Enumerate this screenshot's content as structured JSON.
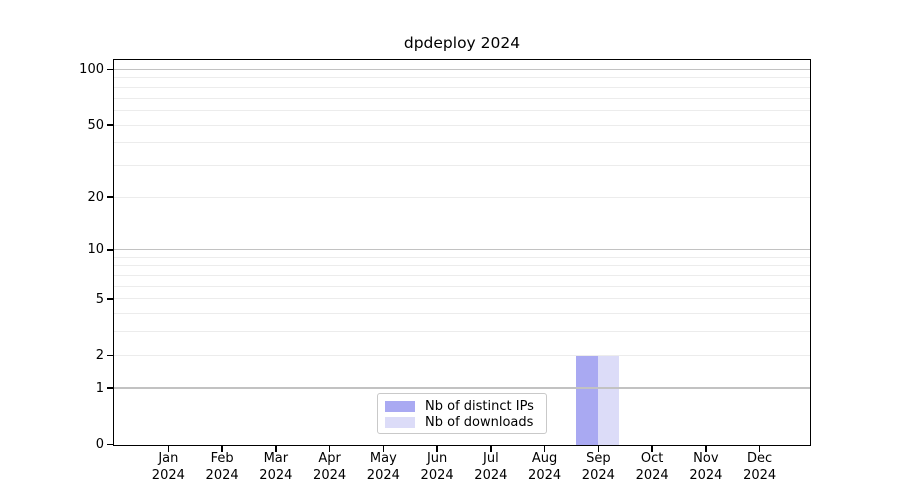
{
  "chart_data": {
    "type": "bar",
    "title": "dpdeploy 2024",
    "categories": [
      "Jan",
      "Feb",
      "Mar",
      "Apr",
      "May",
      "Jun",
      "Jul",
      "Aug",
      "Sep",
      "Oct",
      "Nov",
      "Dec"
    ],
    "x_tick_year": "2024",
    "series": [
      {
        "name": "Nb of distinct IPs",
        "color": "#a9a9f2",
        "values": [
          0,
          0,
          0,
          0,
          0,
          0,
          0,
          0,
          2,
          0,
          0,
          0
        ]
      },
      {
        "name": "Nb of downloads",
        "color": "#dcdcf8",
        "values": [
          0,
          0,
          0,
          0,
          0,
          0,
          0,
          0,
          2,
          0,
          0,
          0
        ]
      }
    ],
    "y_axis": {
      "scale": "log1p",
      "ticks": [
        0,
        1,
        2,
        5,
        10,
        20,
        50,
        100
      ],
      "major_gridlines": [
        1,
        10,
        100
      ],
      "minor_gridlines": [
        2,
        3,
        4,
        5,
        6,
        7,
        8,
        9,
        20,
        30,
        40,
        50,
        60,
        70,
        80,
        90
      ],
      "ylim": [
        0,
        112
      ]
    },
    "legend": {
      "position": "lower center"
    },
    "colors": {
      "background": "#ffffff",
      "axis": "#000000",
      "major_grid": "#c2c2c2",
      "minor_grid": "#ececec",
      "legend_border": "#c9c9c9"
    }
  }
}
